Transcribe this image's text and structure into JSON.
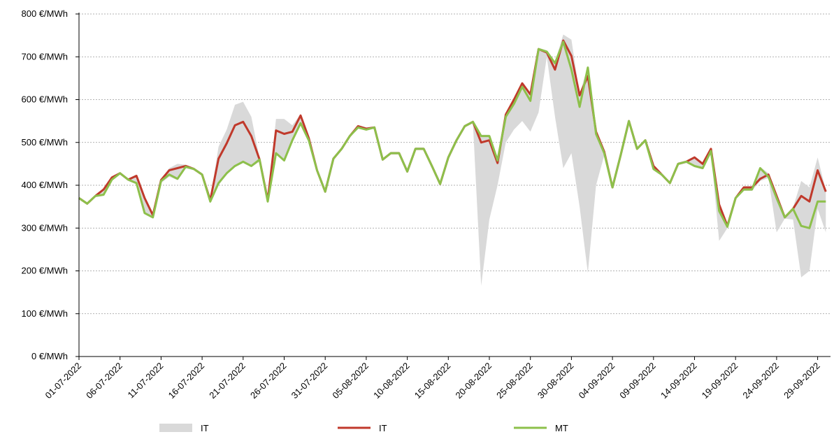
{
  "chart_data": {
    "type": "line",
    "categories": [
      "01-07-2022",
      null,
      null,
      null,
      null,
      "06-07-2022",
      null,
      null,
      null,
      null,
      "11-07-2022",
      null,
      null,
      null,
      null,
      "16-07-2022",
      null,
      null,
      null,
      null,
      "21-07-2022",
      null,
      null,
      null,
      null,
      "26-07-2022",
      null,
      null,
      null,
      null,
      "31-07-2022",
      null,
      null,
      null,
      null,
      "05-08-2022",
      null,
      null,
      null,
      null,
      "10-08-2022",
      null,
      null,
      null,
      null,
      "15-08-2022",
      null,
      null,
      null,
      null,
      "20-08-2022",
      null,
      null,
      null,
      null,
      "25-08-2022",
      null,
      null,
      null,
      null,
      "30-08-2022",
      null,
      null,
      null,
      null,
      "04-09-2022",
      null,
      null,
      null,
      null,
      "09-09-2022",
      null,
      null,
      null,
      null,
      "14-09-2022",
      null,
      null,
      null,
      null,
      "19-09-2022",
      null,
      null,
      null,
      null,
      "24-09-2022",
      null,
      null,
      null,
      null,
      "29-09-2022",
      null
    ],
    "series": [
      {
        "name": "IT",
        "color": "#d9d9d9",
        "style": "band",
        "low": [
          367,
          354,
          372,
          375,
          410,
          425,
          410,
          402,
          332,
          322,
          405,
          420,
          412,
          440,
          435,
          422,
          358,
          400,
          425,
          442,
          452,
          442,
          455,
          358,
          472,
          455,
          500,
          540,
          500,
          432,
          382,
          458,
          482,
          512,
          532,
          528,
          532,
          457,
          472,
          472,
          428,
          482,
          482,
          442,
          400,
          462,
          502,
          535,
          545,
          165,
          320,
          400,
          500,
          530,
          550,
          525,
          570,
          700,
          560,
          440,
          475,
          350,
          195,
          400,
          470,
          392,
          467,
          547,
          482,
          502,
          435,
          422,
          402,
          447,
          452,
          442,
          437,
          476,
          270,
          300,
          367,
          387,
          387,
          410,
          417,
          290,
          322,
          320,
          185,
          200,
          345,
          290
        ],
        "high": [
          373,
          360,
          378,
          393,
          421,
          431,
          416,
          425,
          373,
          333,
          415,
          440,
          450,
          448,
          441,
          428,
          368,
          490,
          530,
          588,
          595,
          560,
          463,
          368,
          555,
          555,
          540,
          566,
          513,
          438,
          388,
          465,
          488,
          518,
          541,
          535,
          538,
          463,
          478,
          478,
          435,
          488,
          488,
          448,
          406,
          468,
          508,
          541,
          551,
          518,
          518,
          461,
          568,
          603,
          641,
          615,
          721,
          715,
          688,
          752,
          740,
          613,
          678,
          528,
          481,
          398,
          473,
          553,
          488,
          508,
          448,
          428,
          408,
          453,
          458,
          468,
          453,
          488,
          358,
          308,
          373,
          398,
          398,
          443,
          428,
          378,
          328,
          348,
          410,
          395,
          465,
          388
        ]
      },
      {
        "name": "IT",
        "color": "#c0392b",
        "style": "line",
        "values": [
          370,
          357,
          375,
          390,
          418,
          428,
          413,
          422,
          370,
          330,
          412,
          435,
          440,
          445,
          438,
          425,
          365,
          462,
          498,
          540,
          548,
          515,
          460,
          365,
          528,
          520,
          525,
          563,
          510,
          435,
          385,
          462,
          485,
          515,
          538,
          532,
          535,
          460,
          475,
          475,
          432,
          485,
          485,
          445,
          403,
          465,
          505,
          538,
          548,
          500,
          505,
          452,
          565,
          600,
          638,
          612,
          718,
          710,
          670,
          738,
          702,
          610,
          655,
          525,
          478,
          395,
          470,
          550,
          485,
          505,
          445,
          425,
          405,
          450,
          455,
          465,
          450,
          485,
          355,
          305,
          370,
          395,
          395,
          415,
          425,
          375,
          325,
          345,
          375,
          362,
          435,
          385
        ]
      },
      {
        "name": "MT",
        "color": "#8dc04b",
        "style": "line",
        "values": [
          370,
          357,
          375,
          378,
          413,
          428,
          413,
          405,
          335,
          325,
          410,
          425,
          415,
          443,
          438,
          425,
          362,
          405,
          428,
          445,
          455,
          445,
          460,
          362,
          475,
          458,
          505,
          545,
          505,
          435,
          385,
          462,
          485,
          515,
          535,
          530,
          535,
          460,
          475,
          475,
          432,
          485,
          485,
          445,
          403,
          465,
          505,
          538,
          548,
          515,
          515,
          458,
          560,
          590,
          630,
          597,
          718,
          712,
          685,
          735,
          670,
          583,
          675,
          520,
          475,
          395,
          470,
          550,
          485,
          505,
          438,
          425,
          405,
          450,
          455,
          445,
          440,
          480,
          340,
          303,
          370,
          390,
          390,
          440,
          420,
          370,
          325,
          345,
          305,
          300,
          362,
          362
        ]
      }
    ],
    "ylim": [
      0,
      800
    ],
    "yticks": [
      {
        "value": 0,
        "label": "0 €/MWh"
      },
      {
        "value": 100,
        "label": "100 €/MWh"
      },
      {
        "value": 200,
        "label": "200 €/MWh"
      },
      {
        "value": 300,
        "label": "300 €/MWh"
      },
      {
        "value": 400,
        "label": "400 €/MWh"
      },
      {
        "value": 500,
        "label": "500 €/MWh"
      },
      {
        "value": 600,
        "label": "600 €/MWh"
      },
      {
        "value": 700,
        "label": "700 €/MWh"
      },
      {
        "value": 800,
        "label": "800 €/MWh"
      }
    ],
    "grid": true,
    "legend": "bottom"
  }
}
